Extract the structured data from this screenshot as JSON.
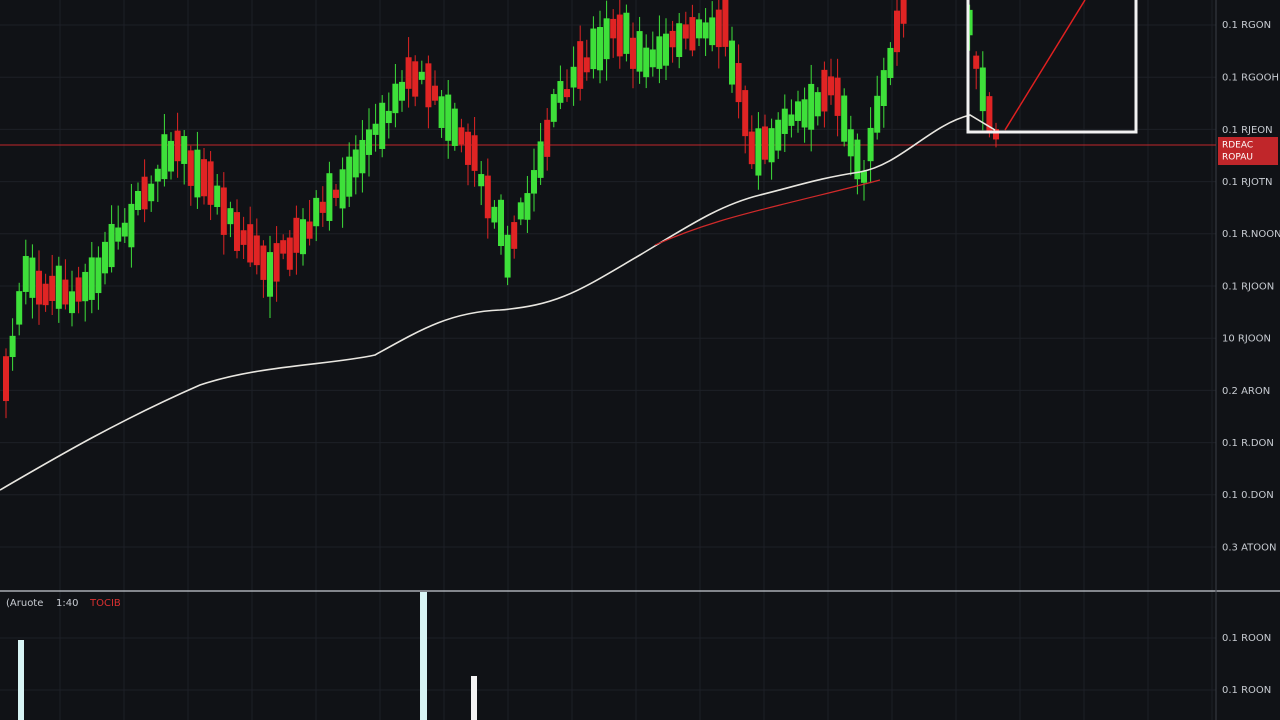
{
  "price_axis": {
    "labels": [
      "0.1 RGON",
      "0.1 RGOOH",
      "0.1 RJEON",
      "0.1 RJOTN",
      "0.1 R.NOON",
      "0.1 RJOON",
      "10 RJOON",
      "0.2 ARON",
      "0.1 R.DON",
      "0.1 0.DON",
      "0.3 ATOON"
    ]
  },
  "price_tag": {
    "lines": [
      "RDEAC",
      "ROPAU"
    ]
  },
  "volume_pane": {
    "legend": [
      "(Aruote",
      "1:40",
      "TOCIB"
    ],
    "axis_labels": [
      "0.1 ROON",
      "0.1 ROON"
    ]
  }
}
